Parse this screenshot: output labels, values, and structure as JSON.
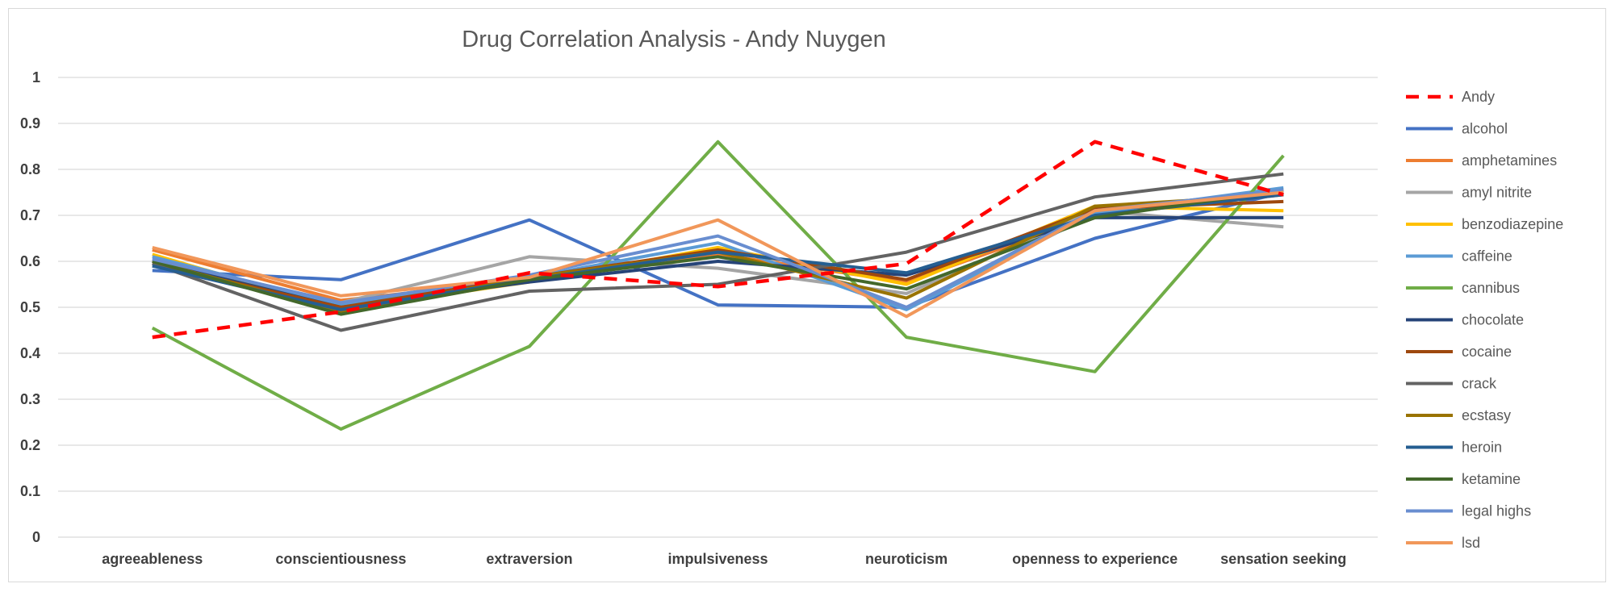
{
  "chart_data": {
    "type": "line",
    "title": "Drug Correlation Analysis - Andy Nuygen",
    "xlabel": "",
    "ylabel": "",
    "ylim": [
      0,
      1
    ],
    "yticks": [
      "0",
      "0.1",
      "0.2",
      "0.3",
      "0.4",
      "0.5",
      "0.6",
      "0.7",
      "0.8",
      "0.9",
      "1"
    ],
    "grid": true,
    "legend_position": "right",
    "categories": [
      "agreeableness",
      "conscientiousness",
      "extraversion",
      "impulsiveness",
      "neuroticism",
      "openness to experience",
      "sensation seeking"
    ],
    "series": [
      {
        "name": "Andy",
        "color": "#ff0000",
        "dashed": true,
        "values": [
          0.435,
          0.49,
          0.575,
          0.545,
          0.595,
          0.86,
          0.745
        ]
      },
      {
        "name": "alcohol",
        "color": "#4472c4",
        "values": [
          0.58,
          0.56,
          0.69,
          0.505,
          0.5,
          0.65,
          0.75
        ]
      },
      {
        "name": "amphetamines",
        "color": "#ed7d31",
        "values": [
          0.625,
          0.515,
          0.56,
          0.615,
          0.555,
          0.7,
          0.745
        ]
      },
      {
        "name": "amyl nitrite",
        "color": "#a5a5a5",
        "values": [
          0.59,
          0.51,
          0.61,
          0.585,
          0.53,
          0.71,
          0.675
        ]
      },
      {
        "name": "benzodiazepine",
        "color": "#ffc000",
        "values": [
          0.615,
          0.495,
          0.555,
          0.63,
          0.55,
          0.72,
          0.71
        ]
      },
      {
        "name": "caffeine",
        "color": "#5b9bd5",
        "values": [
          0.61,
          0.505,
          0.565,
          0.64,
          0.495,
          0.705,
          0.76
        ]
      },
      {
        "name": "cannibus",
        "color": "#70ad47",
        "values": [
          0.455,
          0.235,
          0.415,
          0.86,
          0.435,
          0.36,
          0.83
        ]
      },
      {
        "name": "chocolate",
        "color": "#264478",
        "values": [
          0.6,
          0.5,
          0.555,
          0.6,
          0.57,
          0.695,
          0.695
        ]
      },
      {
        "name": "cocaine",
        "color": "#9e480e",
        "values": [
          0.595,
          0.5,
          0.565,
          0.625,
          0.56,
          0.715,
          0.73
        ]
      },
      {
        "name": "crack",
        "color": "#636363",
        "values": [
          0.595,
          0.45,
          0.535,
          0.55,
          0.62,
          0.74,
          0.79
        ]
      },
      {
        "name": "ecstasy",
        "color": "#997300",
        "values": [
          0.6,
          0.49,
          0.565,
          0.62,
          0.52,
          0.72,
          0.745
        ]
      },
      {
        "name": "heroin",
        "color": "#255e91",
        "values": [
          0.59,
          0.495,
          0.56,
          0.62,
          0.575,
          0.7,
          0.745
        ]
      },
      {
        "name": "ketamine",
        "color": "#43682b",
        "values": [
          0.6,
          0.485,
          0.56,
          0.61,
          0.54,
          0.695,
          0.755
        ]
      },
      {
        "name": "legal highs",
        "color": "#698ed0",
        "values": [
          0.605,
          0.51,
          0.57,
          0.655,
          0.5,
          0.71,
          0.755
        ]
      },
      {
        "name": "lsd",
        "color": "#f1975a",
        "values": [
          0.63,
          0.525,
          0.565,
          0.69,
          0.48,
          0.71,
          0.75
        ]
      }
    ]
  }
}
